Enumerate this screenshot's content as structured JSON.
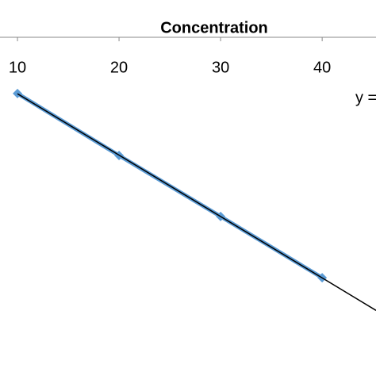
{
  "chart_data": {
    "type": "line",
    "x_axis_title": "Concentration",
    "x": [
      10,
      20,
      30,
      40
    ],
    "series": [
      {
        "color": "#5b9bd5",
        "values": [
          8.34,
          6.51,
          4.71,
          2.9
        ]
      }
    ],
    "trendline": true,
    "trendline_color": "#000000",
    "annotation": "y =",
    "xlim": [
      8.28,
      45.3
    ],
    "xticks": [
      10,
      20,
      30,
      40
    ],
    "ylim": [
      0,
      10
    ]
  }
}
